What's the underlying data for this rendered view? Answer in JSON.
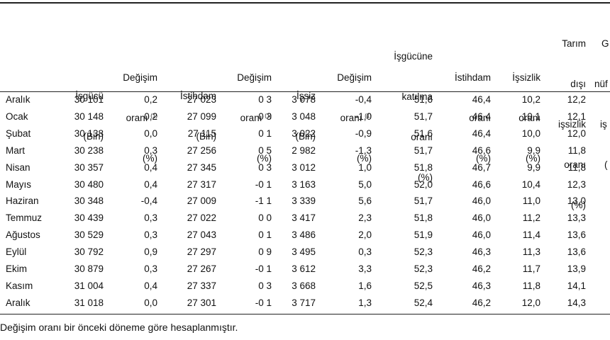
{
  "headers": {
    "c1": {
      "l1": "İşgücü",
      "l2": "(Bin)"
    },
    "c2": {
      "l0": "Değişim",
      "l1": "oranı",
      "sup": "(1)",
      "l2": "(%)"
    },
    "c3": {
      "l1": "İstihdam",
      "l2": "(Bin)"
    },
    "c4": {
      "l0": "Değişim",
      "l1": "oranı",
      "sup": "(1)",
      "l2": "(%)"
    },
    "c5": {
      "l1": "İşsiz",
      "l2": "(Bin)"
    },
    "c6": {
      "l0": "Değişim",
      "l1": "oranı",
      "sup": "(1)",
      "l2": "(%)"
    },
    "c7": {
      "la": "İşgücüne",
      "lb": "katılma",
      "l1": "oranı",
      "l2": "(%)"
    },
    "c8": {
      "l0": "İstihdam",
      "l1": "oranı",
      "l2": "(%)"
    },
    "c9": {
      "l0": "İşsizlik",
      "l1": "oranı",
      "l2": "(%)"
    },
    "c10": {
      "lt": "Tarım",
      "la": "dışı",
      "lb": "işsizlik",
      "l1": "oranı",
      "l2": "(%)"
    },
    "c11": {
      "lt": "G",
      "la": "nüf",
      "lb": "iş",
      "l1": "(",
      "l2": ""
    }
  },
  "rows": [
    {
      "month": "Aralık",
      "c1": "30 101",
      "c2": "0,2",
      "c3": "27 023",
      "c4": "0 3",
      "c5": "3 078",
      "c6": "-0,4",
      "c7": "51,6",
      "c8": "46,4",
      "c9": "10,2",
      "c10": "12,2"
    },
    {
      "month": "Ocak",
      "c1": "30 148",
      "c2": "0,2",
      "c3": "27 099",
      "c4": "0 3",
      "c5": "3 048",
      "c6": "-1,0",
      "c7": "51,7",
      "c8": "46,4",
      "c9": "10,1",
      "c10": "12,1"
    },
    {
      "month": "Şubat",
      "c1": "30 138",
      "c2": "0,0",
      "c3": "27 115",
      "c4": "0 1",
      "c5": "3 022",
      "c6": "-0,9",
      "c7": "51,6",
      "c8": "46,4",
      "c9": "10,0",
      "c10": "12,0"
    },
    {
      "month": "Mart",
      "c1": "30 238",
      "c2": "0,3",
      "c3": "27 256",
      "c4": "0 5",
      "c5": "2 982",
      "c6": "-1,3",
      "c7": "51,7",
      "c8": "46,6",
      "c9": "9,9",
      "c10": "11,8"
    },
    {
      "month": "Nisan",
      "c1": "30 357",
      "c2": "0,4",
      "c3": "27 345",
      "c4": "0 3",
      "c5": "3 012",
      "c6": "1,0",
      "c7": "51,8",
      "c8": "46,7",
      "c9": "9,9",
      "c10": "11,8"
    },
    {
      "month": "Mayıs",
      "c1": "30 480",
      "c2": "0,4",
      "c3": "27 317",
      "c4": "-0 1",
      "c5": "3 163",
      "c6": "5,0",
      "c7": "52,0",
      "c8": "46,6",
      "c9": "10,4",
      "c10": "12,3"
    },
    {
      "month": "Haziran",
      "c1": "30 348",
      "c2": "-0,4",
      "c3": "27 009",
      "c4": "-1 1",
      "c5": "3 339",
      "c6": "5,6",
      "c7": "51,7",
      "c8": "46,0",
      "c9": "11,0",
      "c10": "13,0"
    },
    {
      "month": "Temmuz",
      "c1": "30 439",
      "c2": "0,3",
      "c3": "27 022",
      "c4": "0 0",
      "c5": "3 417",
      "c6": "2,3",
      "c7": "51,8",
      "c8": "46,0",
      "c9": "11,2",
      "c10": "13,3"
    },
    {
      "month": "Ağustos",
      "c1": "30 529",
      "c2": "0,3",
      "c3": "27 043",
      "c4": "0 1",
      "c5": "3 486",
      "c6": "2,0",
      "c7": "51,9",
      "c8": "46,0",
      "c9": "11,4",
      "c10": "13,6"
    },
    {
      "month": "Eylül",
      "c1": "30 792",
      "c2": "0,9",
      "c3": "27 297",
      "c4": "0 9",
      "c5": "3 495",
      "c6": "0,3",
      "c7": "52,3",
      "c8": "46,3",
      "c9": "11,3",
      "c10": "13,6"
    },
    {
      "month": "Ekim",
      "c1": "30 879",
      "c2": "0,3",
      "c3": "27 267",
      "c4": "-0 1",
      "c5": "3 612",
      "c6": "3,3",
      "c7": "52,3",
      "c8": "46,2",
      "c9": "11,7",
      "c10": "13,9"
    },
    {
      "month": "Kasım",
      "c1": "31 004",
      "c2": "0,4",
      "c3": "27 337",
      "c4": "0 3",
      "c5": "3 668",
      "c6": "1,6",
      "c7": "52,5",
      "c8": "46,3",
      "c9": "11,8",
      "c10": "14,1"
    },
    {
      "month": "Aralık",
      "c1": "31 018",
      "c2": "0,0",
      "c3": "27 301",
      "c4": "-0 1",
      "c5": "3 717",
      "c6": "1,3",
      "c7": "52,4",
      "c8": "46,2",
      "c9": "12,0",
      "c10": "14,3"
    }
  ],
  "footnote": "Değişim oranı bir önceki döneme göre hesaplanmıştır."
}
